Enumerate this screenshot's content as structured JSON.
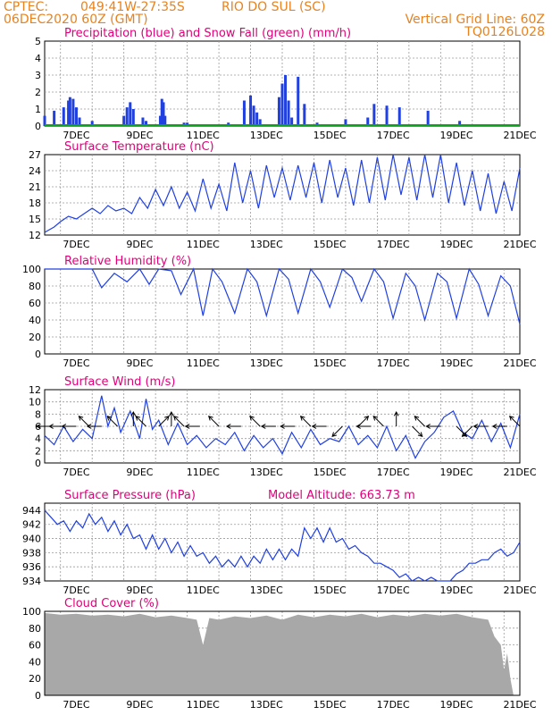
{
  "header": {
    "agency": "CPTEC:",
    "coords": "049:41W-27:35S",
    "station": "RIO DO SUL (SC)",
    "run": "06DEC2020 60Z (GMT)",
    "grid_note": "Vertical Grid Line: 60Z",
    "model": "TQ0126L028"
  },
  "colors": {
    "header": "#e8821e",
    "title": "#e0007a",
    "series": "#2040e0",
    "snow": "#10a020",
    "cloud": "#a8a8a8",
    "grid": "#9a9a9a"
  },
  "chart_data": [
    {
      "type": "bar",
      "title": "Precipitation (blue) and Snow Fall (green) (mm/h)",
      "x_ticks": [
        "7DEC",
        "9DEC",
        "11DEC",
        "13DEC",
        "15DEC",
        "17DEC",
        "19DEC",
        "21DEC"
      ],
      "ylim": [
        0,
        5
      ],
      "y_ticks": [
        0,
        1,
        2,
        3,
        4,
        5
      ],
      "series": [
        {
          "name": "Precipitation",
          "color": "#2040e0",
          "x": [
            6.0,
            6.3,
            6.6,
            6.75,
            6.8,
            6.9,
            7.0,
            7.1,
            7.5,
            8.5,
            8.6,
            8.7,
            8.8,
            9.1,
            9.2,
            9.65,
            9.7,
            9.75,
            9.8,
            10.4,
            10.5,
            11.8,
            12.3,
            12.5,
            12.6,
            12.7,
            12.8,
            13.4,
            13.5,
            13.6,
            13.7,
            13.8,
            14.0,
            14.2,
            14.6,
            14.9,
            15.5,
            16.2,
            16.4,
            16.8,
            17.2,
            18.1,
            19.1,
            19.4
          ],
          "y": [
            0.6,
            0.9,
            1.1,
            1.5,
            1.7,
            1.6,
            1.1,
            0.5,
            0.3,
            0.6,
            1.1,
            1.4,
            1.0,
            0.5,
            0.3,
            0.6,
            1.6,
            1.4,
            0.6,
            0.2,
            0.2,
            0.2,
            1.5,
            1.8,
            1.2,
            0.8,
            0.4,
            1.7,
            2.5,
            3.0,
            1.5,
            0.5,
            2.9,
            1.3,
            0.2,
            0.1,
            0.4,
            0.5,
            1.3,
            1.2,
            1.1,
            0.9,
            0.3,
            0.1
          ]
        },
        {
          "name": "Snow Fall",
          "color": "#10a020",
          "x": [
            6.0,
            21.0
          ],
          "y": [
            0.05,
            0.05
          ]
        }
      ]
    },
    {
      "type": "line",
      "title": "Surface Temperature (nC)",
      "x_ticks": [
        "7DEC",
        "9DEC",
        "11DEC",
        "13DEC",
        "15DEC",
        "17DEC",
        "19DEC",
        "21DEC"
      ],
      "ylim": [
        12,
        27
      ],
      "y_ticks": [
        12,
        15,
        18,
        21,
        24,
        27
      ],
      "series": [
        {
          "name": "Surface Temperature",
          "color": "#2040e0",
          "x": [
            6.0,
            6.3,
            6.5,
            6.75,
            7.0,
            7.25,
            7.5,
            7.75,
            8.0,
            8.25,
            8.5,
            8.75,
            9.0,
            9.25,
            9.5,
            9.75,
            10.0,
            10.25,
            10.5,
            10.75,
            11.0,
            11.25,
            11.5,
            11.75,
            12.0,
            12.25,
            12.5,
            12.75,
            13.0,
            13.25,
            13.5,
            13.75,
            14.0,
            14.25,
            14.5,
            14.75,
            15.0,
            15.25,
            15.5,
            15.75,
            16.0,
            16.25,
            16.5,
            16.75,
            17.0,
            17.25,
            17.5,
            17.75,
            18.0,
            18.25,
            18.5,
            18.75,
            19.0,
            19.25,
            19.5,
            19.75,
            20.0,
            20.25,
            20.5,
            20.75,
            21.0
          ],
          "y": [
            12.5,
            13.5,
            14.5,
            15.5,
            15.0,
            16.0,
            17.0,
            16.0,
            17.5,
            16.5,
            17.0,
            16.0,
            19.0,
            17.0,
            20.5,
            17.5,
            21.0,
            17.0,
            20.0,
            16.5,
            22.5,
            17.0,
            21.5,
            16.5,
            25.5,
            18.0,
            24.0,
            17.0,
            25.0,
            19.0,
            24.5,
            18.5,
            25.0,
            19.0,
            25.5,
            18.0,
            26.0,
            19.0,
            24.5,
            17.5,
            26.0,
            18.0,
            26.5,
            18.5,
            27.0,
            19.5,
            26.5,
            18.5,
            27.0,
            19.0,
            27.0,
            18.0,
            25.5,
            17.5,
            24.0,
            16.5,
            23.5,
            16.0,
            22.0,
            16.5,
            24.5
          ]
        }
      ]
    },
    {
      "type": "line",
      "title": "Relative Humidity (%)",
      "x_ticks": [
        "7DEC",
        "9DEC",
        "11DEC",
        "13DEC",
        "15DEC",
        "17DEC",
        "19DEC",
        "21DEC"
      ],
      "ylim": [
        0,
        100
      ],
      "y_ticks": [
        0,
        20,
        40,
        60,
        80,
        100
      ],
      "series": [
        {
          "name": "Relative Humidity",
          "color": "#2040e0",
          "x": [
            6.0,
            7.5,
            7.8,
            8.2,
            8.6,
            9.0,
            9.3,
            9.6,
            10.0,
            10.3,
            10.7,
            11.0,
            11.3,
            11.6,
            12.0,
            12.4,
            12.7,
            13.0,
            13.4,
            13.7,
            14.0,
            14.4,
            14.7,
            15.0,
            15.4,
            15.7,
            16.0,
            16.4,
            16.7,
            17.0,
            17.4,
            17.7,
            18.0,
            18.4,
            18.7,
            19.0,
            19.4,
            19.7,
            20.0,
            20.4,
            20.7,
            21.0
          ],
          "y": [
            100,
            100,
            78,
            95,
            85,
            100,
            82,
            100,
            98,
            70,
            100,
            45,
            100,
            85,
            48,
            100,
            85,
            45,
            100,
            88,
            48,
            100,
            85,
            55,
            100,
            90,
            62,
            100,
            85,
            42,
            95,
            80,
            40,
            95,
            85,
            42,
            100,
            82,
            45,
            92,
            80,
            35
          ]
        }
      ]
    },
    {
      "type": "line",
      "title": "Surface Wind (m/s)",
      "x_ticks": [
        "7DEC",
        "9DEC",
        "11DEC",
        "13DEC",
        "15DEC",
        "17DEC",
        "19DEC",
        "21DEC"
      ],
      "ylim": [
        0,
        12
      ],
      "y_ticks": [
        0,
        2,
        4,
        6,
        8,
        10,
        12
      ],
      "series": [
        {
          "name": "Surface Wind",
          "color": "#2040e0",
          "x": [
            6.0,
            6.3,
            6.6,
            6.9,
            7.2,
            7.5,
            7.8,
            8.0,
            8.2,
            8.4,
            8.7,
            9.0,
            9.2,
            9.4,
            9.6,
            9.9,
            10.2,
            10.5,
            10.8,
            11.1,
            11.4,
            11.7,
            12.0,
            12.3,
            12.6,
            12.9,
            13.2,
            13.5,
            13.8,
            14.1,
            14.4,
            14.7,
            15.0,
            15.3,
            15.6,
            15.9,
            16.2,
            16.5,
            16.8,
            17.1,
            17.4,
            17.7,
            18.0,
            18.3,
            18.6,
            18.9,
            19.2,
            19.5,
            19.8,
            20.1,
            20.4,
            20.7,
            21.0
          ],
          "y": [
            4.5,
            3.0,
            6.0,
            3.5,
            5.5,
            4.0,
            11.0,
            6.0,
            9.0,
            5.0,
            8.5,
            4.0,
            10.5,
            5.5,
            7.0,
            3.0,
            6.5,
            3.0,
            4.5,
            2.5,
            4.0,
            3.0,
            5.0,
            2.0,
            4.5,
            2.5,
            4.0,
            1.5,
            5.0,
            2.5,
            5.5,
            3.0,
            4.0,
            3.5,
            6.0,
            3.0,
            4.5,
            2.5,
            6.0,
            2.0,
            4.5,
            0.8,
            3.5,
            5.0,
            7.5,
            8.5,
            5.0,
            4.0,
            7.0,
            3.5,
            6.5,
            2.5,
            8.0
          ]
        }
      ],
      "arrows": {
        "x": [
          6.2,
          6.6,
          7.0,
          7.4,
          7.8,
          8.3,
          8.8,
          9.2,
          9.6,
          10.0,
          10.4,
          10.9,
          11.5,
          12.2,
          12.8,
          13.3,
          13.9,
          14.4,
          14.9,
          15.4,
          15.9,
          16.3,
          16.7,
          17.1,
          17.6,
          18.0,
          18.5,
          19.0,
          19.5,
          20.0,
          20.6,
          21.0
        ],
        "dir": [
          "W",
          "W",
          "W",
          "NW",
          "W",
          "NW",
          "N",
          "NW",
          "NE",
          "N",
          "NW",
          "W",
          "NW",
          "W",
          "NW",
          "W",
          "W",
          "NW",
          "W",
          "SW",
          "NE",
          "W",
          "NW",
          "N",
          "SE",
          "NW",
          "W",
          "SE",
          "SW",
          "W",
          "W",
          "NW"
        ]
      }
    },
    {
      "type": "line",
      "title": "Surface Pressure (hPa)",
      "annotation": "Model Altitude: 663.73 m",
      "x_ticks": [
        "7DEC",
        "9DEC",
        "11DEC",
        "13DEC",
        "15DEC",
        "17DEC",
        "19DEC",
        "21DEC"
      ],
      "ylim": [
        934,
        945
      ],
      "y_ticks": [
        934,
        936,
        938,
        940,
        942,
        944
      ],
      "series": [
        {
          "name": "Surface Pressure",
          "color": "#2040e0",
          "x": [
            6.0,
            6.2,
            6.4,
            6.6,
            6.8,
            7.0,
            7.2,
            7.4,
            7.6,
            7.8,
            8.0,
            8.2,
            8.4,
            8.6,
            8.8,
            9.0,
            9.2,
            9.4,
            9.6,
            9.8,
            10.0,
            10.2,
            10.4,
            10.6,
            10.8,
            11.0,
            11.2,
            11.4,
            11.6,
            11.8,
            12.0,
            12.2,
            12.4,
            12.6,
            12.8,
            13.0,
            13.2,
            13.4,
            13.6,
            13.8,
            14.0,
            14.2,
            14.4,
            14.6,
            14.8,
            15.0,
            15.2,
            15.4,
            15.6,
            15.8,
            16.0,
            16.2,
            16.4,
            16.6,
            16.8,
            17.0,
            17.2,
            17.4,
            17.6,
            17.8,
            18.0,
            18.2,
            18.4,
            18.6,
            18.8,
            19.0,
            19.2,
            19.4,
            19.6,
            19.8,
            20.0,
            20.2,
            20.4,
            20.6,
            20.8,
            21.0
          ],
          "y": [
            944.0,
            943.0,
            942.0,
            942.5,
            941.0,
            942.5,
            941.5,
            943.5,
            942.0,
            943.0,
            941.0,
            942.5,
            940.5,
            942.0,
            940.0,
            940.5,
            938.5,
            940.5,
            938.5,
            940.0,
            938.0,
            939.5,
            937.5,
            939.0,
            937.5,
            938.0,
            936.5,
            937.5,
            936.0,
            937.0,
            936.0,
            937.5,
            936.0,
            937.5,
            936.5,
            938.5,
            937.0,
            938.5,
            937.0,
            938.5,
            937.5,
            941.5,
            940.0,
            941.5,
            939.5,
            941.5,
            939.5,
            940.0,
            938.5,
            939.0,
            938.0,
            937.5,
            936.5,
            936.5,
            936.0,
            935.5,
            934.5,
            935.0,
            934.0,
            934.5,
            933.5,
            934.5,
            933.5,
            934.0,
            933.5,
            935.0,
            935.5,
            936.5,
            936.5,
            937.0,
            937.0,
            938.0,
            938.5,
            937.5,
            938.0,
            939.5
          ]
        }
      ]
    },
    {
      "type": "area",
      "title": "Cloud Cover (%)",
      "x_ticks": [
        "7DEC",
        "9DEC",
        "11DEC",
        "13DEC",
        "15DEC",
        "17DEC",
        "19DEC",
        "21DEC"
      ],
      "ylim": [
        0,
        100
      ],
      "y_ticks": [
        0,
        20,
        40,
        60,
        80,
        100
      ],
      "series": [
        {
          "name": "Cloud Cover",
          "color": "#a8a8a8",
          "x": [
            6.0,
            6.5,
            7.0,
            7.5,
            8.0,
            8.5,
            9.0,
            9.5,
            10.0,
            10.5,
            10.8,
            11.0,
            11.2,
            11.5,
            12.0,
            12.5,
            13.0,
            13.5,
            14.0,
            14.5,
            15.0,
            15.5,
            16.0,
            16.5,
            17.0,
            17.5,
            18.0,
            18.5,
            19.0,
            19.5,
            20.0,
            20.2,
            20.4,
            20.5,
            20.6,
            20.7,
            20.8,
            21.0
          ],
          "y": [
            98,
            96,
            97,
            95,
            96,
            94,
            97,
            93,
            95,
            92,
            90,
            60,
            92,
            90,
            94,
            92,
            95,
            90,
            96,
            93,
            96,
            94,
            97,
            93,
            96,
            94,
            97,
            95,
            97,
            93,
            90,
            70,
            60,
            30,
            50,
            20,
            0,
            0
          ]
        }
      ]
    }
  ]
}
